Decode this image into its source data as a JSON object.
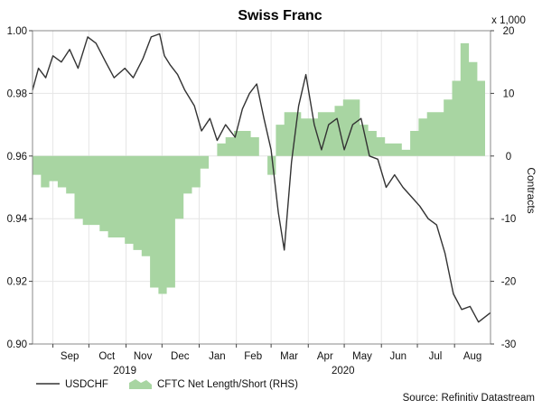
{
  "chart_data": {
    "type": "line",
    "title": "Swiss Franc",
    "y_right_unit_note": "x 1,000",
    "ylabel_right": "Contracts",
    "ylim_left": [
      0.9,
      1.0
    ],
    "ylim_right": [
      -30,
      20
    ],
    "yticks_left": [
      "0.90",
      "0.92",
      "0.94",
      "0.96",
      "0.98",
      "1.00"
    ],
    "yticks_right": [
      "-30",
      "-20",
      "-10",
      "0",
      "10",
      "20"
    ],
    "x_month_labels": [
      "Sep",
      "Oct",
      "Nov",
      "Dec",
      "Jan",
      "Feb",
      "Mar",
      "Apr",
      "May",
      "Jun",
      "Jul",
      "Aug"
    ],
    "x_year_labels": [
      "2019",
      "2020"
    ],
    "x_range": [
      "2019-08-15",
      "2020-08-31"
    ],
    "source": "Source: Refinitiv Datastream",
    "series": [
      {
        "name": "USDCHF",
        "axis": "left",
        "color": "#333333",
        "points": [
          [
            "2019-08-15",
            0.981
          ],
          [
            "2019-08-20",
            0.988
          ],
          [
            "2019-08-26",
            0.985
          ],
          [
            "2019-09-01",
            0.992
          ],
          [
            "2019-09-08",
            0.99
          ],
          [
            "2019-09-15",
            0.994
          ],
          [
            "2019-09-22",
            0.988
          ],
          [
            "2019-09-30",
            0.998
          ],
          [
            "2019-10-07",
            0.996
          ],
          [
            "2019-10-15",
            0.99
          ],
          [
            "2019-10-22",
            0.985
          ],
          [
            "2019-10-31",
            0.988
          ],
          [
            "2019-11-07",
            0.985
          ],
          [
            "2019-11-15",
            0.991
          ],
          [
            "2019-11-22",
            0.998
          ],
          [
            "2019-11-29",
            0.999
          ],
          [
            "2019-12-03",
            0.992
          ],
          [
            "2019-12-08",
            0.989
          ],
          [
            "2019-12-14",
            0.986
          ],
          [
            "2019-12-20",
            0.981
          ],
          [
            "2019-12-28",
            0.976
          ],
          [
            "2020-01-03",
            0.968
          ],
          [
            "2020-01-10",
            0.972
          ],
          [
            "2020-01-16",
            0.965
          ],
          [
            "2020-01-23",
            0.97
          ],
          [
            "2020-01-31",
            0.966
          ],
          [
            "2020-02-06",
            0.975
          ],
          [
            "2020-02-12",
            0.98
          ],
          [
            "2020-02-18",
            0.983
          ],
          [
            "2020-02-24",
            0.972
          ],
          [
            "2020-03-01",
            0.962
          ],
          [
            "2020-03-07",
            0.942
          ],
          [
            "2020-03-12",
            0.93
          ],
          [
            "2020-03-18",
            0.958
          ],
          [
            "2020-03-24",
            0.976
          ],
          [
            "2020-03-30",
            0.986
          ],
          [
            "2020-04-06",
            0.97
          ],
          [
            "2020-04-12",
            0.962
          ],
          [
            "2020-04-18",
            0.97
          ],
          [
            "2020-04-25",
            0.972
          ],
          [
            "2020-05-01",
            0.962
          ],
          [
            "2020-05-08",
            0.97
          ],
          [
            "2020-05-15",
            0.972
          ],
          [
            "2020-05-22",
            0.96
          ],
          [
            "2020-05-29",
            0.959
          ],
          [
            "2020-06-05",
            0.95
          ],
          [
            "2020-06-12",
            0.954
          ],
          [
            "2020-06-19",
            0.95
          ],
          [
            "2020-06-26",
            0.947
          ],
          [
            "2020-07-03",
            0.944
          ],
          [
            "2020-07-10",
            0.94
          ],
          [
            "2020-07-17",
            0.938
          ],
          [
            "2020-07-24",
            0.929
          ],
          [
            "2020-07-31",
            0.916
          ],
          [
            "2020-08-07",
            0.911
          ],
          [
            "2020-08-14",
            0.912
          ],
          [
            "2020-08-21",
            0.907
          ],
          [
            "2020-08-31",
            0.91
          ]
        ]
      },
      {
        "name": "CFTC Net Length/Short (RHS)",
        "axis": "right",
        "color": "#a8d5a2",
        "points": [
          [
            "2019-08-15",
            -3
          ],
          [
            "2019-08-22",
            -5
          ],
          [
            "2019-08-29",
            -4
          ],
          [
            "2019-09-05",
            -5
          ],
          [
            "2019-09-12",
            -6
          ],
          [
            "2019-09-19",
            -10
          ],
          [
            "2019-09-26",
            -11
          ],
          [
            "2019-10-03",
            -11
          ],
          [
            "2019-10-10",
            -12
          ],
          [
            "2019-10-17",
            -13
          ],
          [
            "2019-10-24",
            -13
          ],
          [
            "2019-10-31",
            -14
          ],
          [
            "2019-11-07",
            -15
          ],
          [
            "2019-11-14",
            -16
          ],
          [
            "2019-11-21",
            -21
          ],
          [
            "2019-11-28",
            -22
          ],
          [
            "2019-12-05",
            -21
          ],
          [
            "2019-12-12",
            -10
          ],
          [
            "2019-12-19",
            -6
          ],
          [
            "2019-12-26",
            -5
          ],
          [
            "2020-01-02",
            -2
          ],
          [
            "2020-01-09",
            0
          ],
          [
            "2020-01-16",
            2
          ],
          [
            "2020-01-23",
            3
          ],
          [
            "2020-01-30",
            4
          ],
          [
            "2020-02-06",
            4
          ],
          [
            "2020-02-13",
            3
          ],
          [
            "2020-02-20",
            0
          ],
          [
            "2020-02-27",
            -3
          ],
          [
            "2020-03-05",
            5
          ],
          [
            "2020-03-12",
            7
          ],
          [
            "2020-03-19",
            7
          ],
          [
            "2020-03-26",
            6
          ],
          [
            "2020-04-02",
            6
          ],
          [
            "2020-04-09",
            7
          ],
          [
            "2020-04-16",
            7
          ],
          [
            "2020-04-23",
            8
          ],
          [
            "2020-04-30",
            9
          ],
          [
            "2020-05-07",
            9
          ],
          [
            "2020-05-14",
            5
          ],
          [
            "2020-05-21",
            4
          ],
          [
            "2020-05-28",
            3
          ],
          [
            "2020-06-04",
            2
          ],
          [
            "2020-06-11",
            2
          ],
          [
            "2020-06-18",
            1
          ],
          [
            "2020-06-25",
            4
          ],
          [
            "2020-07-02",
            6
          ],
          [
            "2020-07-09",
            7
          ],
          [
            "2020-07-16",
            7
          ],
          [
            "2020-07-23",
            9
          ],
          [
            "2020-07-30",
            12
          ],
          [
            "2020-08-06",
            18
          ],
          [
            "2020-08-13",
            15
          ],
          [
            "2020-08-20",
            12
          ],
          [
            "2020-08-27",
            12
          ]
        ]
      }
    ],
    "legend": [
      {
        "label": "USDCHF",
        "swatch": "line"
      },
      {
        "label": "CFTC Net Length/Short (RHS)",
        "swatch": "area"
      }
    ]
  }
}
